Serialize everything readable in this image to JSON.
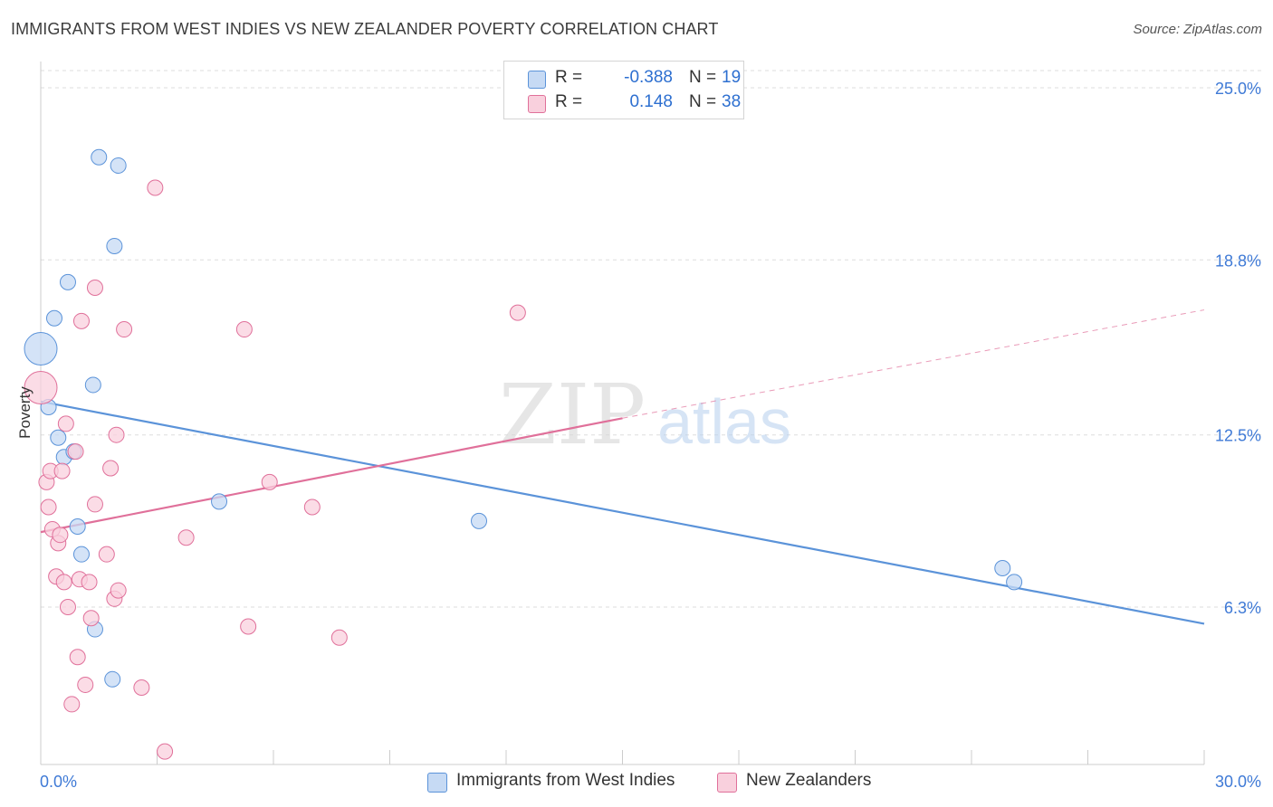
{
  "title": "IMMIGRANTS FROM WEST INDIES VS NEW ZEALANDER POVERTY CORRELATION CHART",
  "source": "Source: ZipAtlas.com",
  "watermark": {
    "zip": "ZIP",
    "atlas": "atlas"
  },
  "legend_top": {
    "rows": [
      {
        "r_label": "R =",
        "r_value": "-0.388",
        "n_label": "N =",
        "n_value": "19",
        "color": "#a9c8ee"
      },
      {
        "r_label": "R =",
        "r_value": "0.148",
        "n_label": "N =",
        "n_value": "38",
        "color": "#f6b8cc"
      }
    ]
  },
  "legend_bottom": {
    "items": [
      {
        "label": "Immigrants from West Indies",
        "color": "#a9c8ee"
      },
      {
        "label": "New Zealanders",
        "color": "#f6b8cc"
      }
    ]
  },
  "chart_data": {
    "type": "scatter",
    "title": "IMMIGRANTS FROM WEST INDIES VS NEW ZEALANDER POVERTY CORRELATION CHART",
    "xlabel": "",
    "ylabel": "Poverty",
    "xlim": [
      0,
      30
    ],
    "ylim": [
      0,
      25
    ],
    "x_tick_labels": [
      "0.0%",
      "30.0%"
    ],
    "y_ticks": [
      6.3,
      12.5,
      18.8,
      25.0
    ],
    "y_tick_labels": [
      "6.3%",
      "12.5%",
      "18.8%",
      "25.0%"
    ],
    "grid": true,
    "legend_position": "top-center",
    "series": [
      {
        "name": "Immigrants from West Indies",
        "color": "#5b93d9",
        "fill": "#c6daf4",
        "points": [
          {
            "x": 0.0,
            "y": 15.6,
            "size": "large"
          },
          {
            "x": 0.2,
            "y": 13.5
          },
          {
            "x": 0.35,
            "y": 16.7
          },
          {
            "x": 0.45,
            "y": 12.4
          },
          {
            "x": 0.6,
            "y": 11.7
          },
          {
            "x": 0.7,
            "y": 18.0
          },
          {
            "x": 0.85,
            "y": 11.9
          },
          {
            "x": 0.95,
            "y": 9.2
          },
          {
            "x": 1.05,
            "y": 8.2
          },
          {
            "x": 1.35,
            "y": 14.3
          },
          {
            "x": 1.4,
            "y": 5.5
          },
          {
            "x": 1.5,
            "y": 22.5
          },
          {
            "x": 1.85,
            "y": 3.7
          },
          {
            "x": 1.9,
            "y": 19.3
          },
          {
            "x": 2.0,
            "y": 22.2
          },
          {
            "x": 4.6,
            "y": 10.1
          },
          {
            "x": 11.3,
            "y": 9.4
          },
          {
            "x": 24.8,
            "y": 7.7
          },
          {
            "x": 25.1,
            "y": 7.2
          }
        ],
        "trend": {
          "x": [
            0.0,
            30.0
          ],
          "y": [
            13.7,
            5.7
          ],
          "style": "solid"
        }
      },
      {
        "name": "New Zealanders",
        "color": "#e0709a",
        "fill": "#f9d0dd",
        "points": [
          {
            "x": 0.0,
            "y": 14.2,
            "size": "large"
          },
          {
            "x": 0.15,
            "y": 10.8
          },
          {
            "x": 0.2,
            "y": 9.9
          },
          {
            "x": 0.25,
            "y": 11.2
          },
          {
            "x": 0.3,
            "y": 9.1
          },
          {
            "x": 0.4,
            "y": 7.4
          },
          {
            "x": 0.45,
            "y": 8.6
          },
          {
            "x": 0.5,
            "y": 8.9
          },
          {
            "x": 0.55,
            "y": 11.2
          },
          {
            "x": 0.6,
            "y": 7.2
          },
          {
            "x": 0.65,
            "y": 12.9
          },
          {
            "x": 0.7,
            "y": 6.3
          },
          {
            "x": 0.8,
            "y": 2.8
          },
          {
            "x": 0.9,
            "y": 11.9
          },
          {
            "x": 0.95,
            "y": 4.5
          },
          {
            "x": 1.0,
            "y": 7.3
          },
          {
            "x": 1.05,
            "y": 16.6
          },
          {
            "x": 1.15,
            "y": 3.5
          },
          {
            "x": 1.25,
            "y": 7.2
          },
          {
            "x": 1.3,
            "y": 5.9
          },
          {
            "x": 1.4,
            "y": 17.8
          },
          {
            "x": 1.4,
            "y": 10.0
          },
          {
            "x": 1.7,
            "y": 8.2
          },
          {
            "x": 1.8,
            "y": 11.3
          },
          {
            "x": 1.9,
            "y": 6.6
          },
          {
            "x": 1.95,
            "y": 12.5
          },
          {
            "x": 2.0,
            "y": 6.9
          },
          {
            "x": 2.15,
            "y": 16.3
          },
          {
            "x": 2.6,
            "y": 3.4
          },
          {
            "x": 2.95,
            "y": 21.4
          },
          {
            "x": 3.2,
            "y": 1.1
          },
          {
            "x": 3.75,
            "y": 8.8
          },
          {
            "x": 5.25,
            "y": 16.3
          },
          {
            "x": 5.35,
            "y": 5.6
          },
          {
            "x": 5.9,
            "y": 10.8
          },
          {
            "x": 7.0,
            "y": 9.9
          },
          {
            "x": 7.7,
            "y": 5.2
          },
          {
            "x": 12.3,
            "y": 16.9
          }
        ],
        "trend": {
          "x": [
            0.0,
            15.0
          ],
          "y": [
            9.0,
            13.1
          ],
          "style": "solid"
        },
        "trend_extension": {
          "x": [
            15.0,
            30.0
          ],
          "y": [
            13.1,
            17.0
          ],
          "style": "dashed"
        }
      }
    ]
  }
}
